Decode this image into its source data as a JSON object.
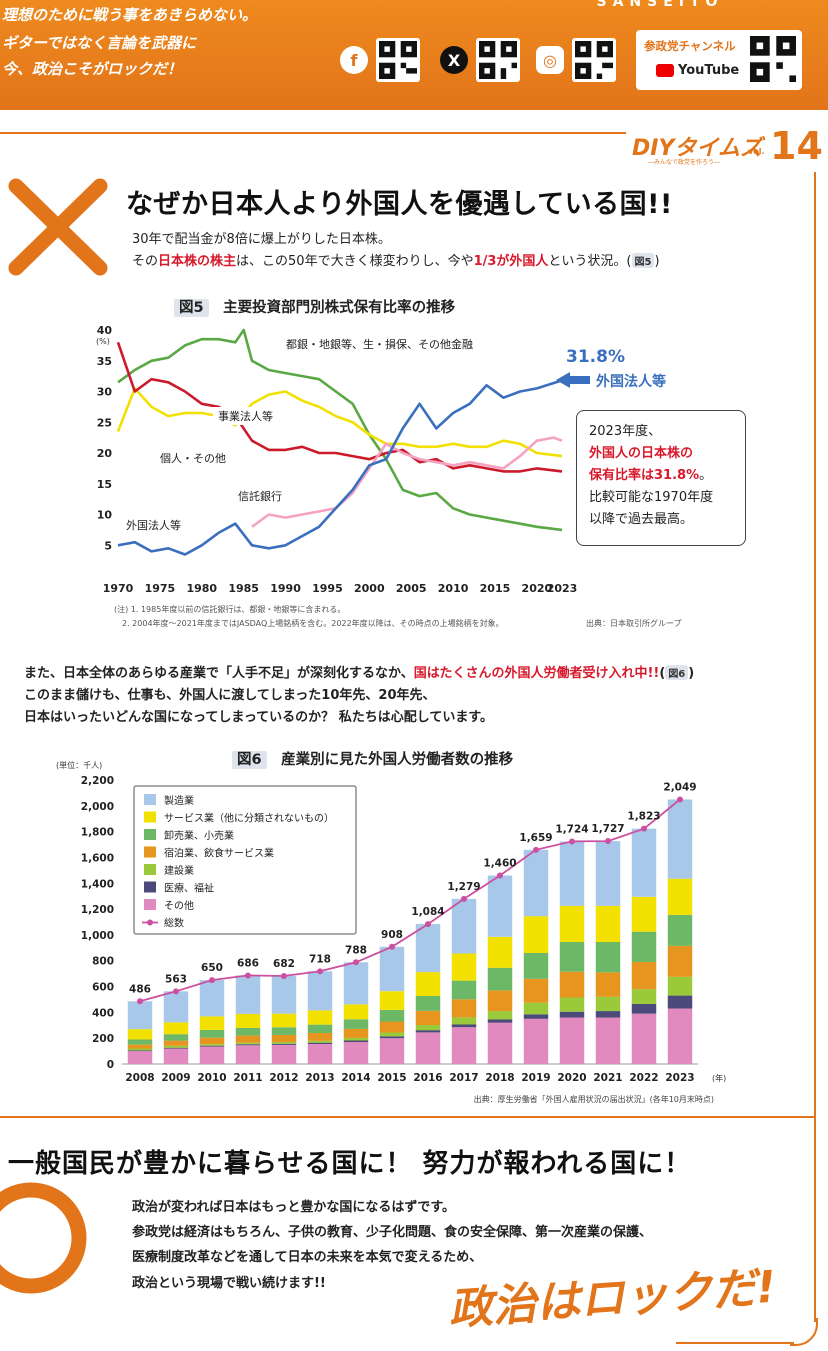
{
  "header": {
    "slogan_lines": [
      "理想のために戦う事をあきらめない。",
      "ギターではなく言論を武器に",
      "今、政治こそがロックだ！"
    ],
    "brand": "SANSEITO",
    "channel_label": "参政党チャンネル",
    "youtube_label": "YouTube",
    "social_icons": [
      "facebook-icon",
      "x-icon",
      "instagram-icon"
    ]
  },
  "masthead": {
    "title": "DIYタイムズ",
    "vol": "vol.",
    "number": "14",
    "tagline": "―みんなで政党を作ろう―"
  },
  "section1": {
    "headline": "なぜか日本人より外国人を優遇している国!!",
    "line1": "30年で配当金が8倍に爆上がりした日本株。",
    "line2_a": "その",
    "line2_red1": "日本株の株主",
    "line2_b": "は、この50年で大きく様変わりし、今や",
    "line2_red2": "1/3が外国人",
    "line2_c": "という状況。(",
    "line2_fig": "図5",
    "line2_d": ")"
  },
  "chart1_text": {
    "fig_label": "図5",
    "title": "主要投資部門別株式保有比率の推移",
    "unit": "(%)",
    "series_labels": {
      "fin": "都銀・地銀等、生・損保、その他金融",
      "corp": "事業法人等",
      "indiv": "個人・その他",
      "trust": "信託銀行",
      "foreign": "外国法人等"
    },
    "highlight_value": "31.8%",
    "highlight_label": "外国法人等",
    "notes": [
      "(注) 1. 1985年度以前の信託銀行は、都銀・地銀等に含まれる。",
      "2. 2004年度～2021年度まではJASDAQ上場銘柄を含む。2022年度以降は、その時点の上場銘柄を対象。"
    ],
    "source": "出典：日本取引所グループ"
  },
  "callout": {
    "l1": "2023年度、",
    "l2": "外国人の日本株の",
    "l3_red": "保有比率は31.8%",
    "l3_end": "。",
    "l4": "比較可能な1970年度",
    "l5": "以降で過去最高。"
  },
  "section2": {
    "l1_a": "また、日本全体のあらゆる産業で「人手不足」が深刻化するなか、",
    "l1_red": "国はたくさんの外国人労働者受け入れ中!!",
    "l1_b": "(",
    "l1_fig": "図6",
    "l1_c": ")",
    "l2": "このまま儲けも、仕事も、外国人に渡してしまった10年先、20年先、",
    "l3": "日本はいったいどんな国になってしまっているのか？ 私たちは心配しています。"
  },
  "chart2_text": {
    "fig_label": "図6",
    "title": "産業別に見た外国人労働者数の推移",
    "unit": "(単位：千人)",
    "year_unit": "(年)",
    "source": "出典：厚生労働省「外国人雇用状況の届出状況」(各年10月末時点)"
  },
  "chart_data": [
    {
      "type": "line",
      "title": "主要投資部門別株式保有比率の推移",
      "ylabel": "(%)",
      "ylim": [
        0,
        40
      ],
      "yticks": [
        5,
        10,
        15,
        20,
        25,
        30,
        35,
        40
      ],
      "xticks": [
        1970,
        1975,
        1980,
        1985,
        1990,
        1995,
        2000,
        2005,
        2010,
        2015,
        2020,
        2023
      ],
      "xlim": [
        1970,
        2023
      ],
      "series": [
        {
          "name": "都銀・地銀等、生・損保、その他金融",
          "color": "#5aa844",
          "x": [
            1970,
            1972,
            1974,
            1976,
            1978,
            1980,
            1982,
            1984,
            1985,
            1986,
            1988,
            1990,
            1992,
            1994,
            1996,
            1998,
            2000,
            2002,
            2004,
            2006,
            2008,
            2010,
            2012,
            2014,
            2016,
            2018,
            2020,
            2023
          ],
          "y": [
            31.5,
            33.5,
            35,
            35.5,
            37.5,
            38.5,
            38.5,
            38,
            40,
            35,
            33.5,
            33,
            32.5,
            32,
            30,
            28,
            23,
            19,
            14,
            13,
            13.5,
            11,
            10,
            9.5,
            9,
            8.5,
            8,
            7.5
          ]
        },
        {
          "name": "事業法人等",
          "color": "#f2e000",
          "x": [
            1970,
            1972,
            1974,
            1976,
            1978,
            1980,
            1982,
            1984,
            1986,
            1988,
            1990,
            1992,
            1994,
            1996,
            1998,
            2000,
            2002,
            2004,
            2006,
            2008,
            2010,
            2012,
            2014,
            2016,
            2018,
            2020,
            2023
          ],
          "y": [
            23.5,
            30.5,
            27.5,
            26,
            26.5,
            26.5,
            26,
            24.5,
            28,
            29.5,
            30,
            28.5,
            27.5,
            26,
            25,
            23,
            21.5,
            21.5,
            21,
            21,
            21.5,
            21,
            21,
            22,
            21.5,
            20,
            19.5
          ]
        },
        {
          "name": "個人・その他",
          "color": "#cc1a2a",
          "x": [
            1970,
            1972,
            1974,
            1976,
            1978,
            1980,
            1982,
            1984,
            1986,
            1988,
            1990,
            1992,
            1994,
            1996,
            1998,
            2000,
            2002,
            2004,
            2006,
            2008,
            2010,
            2012,
            2014,
            2016,
            2018,
            2020,
            2023
          ],
          "y": [
            38,
            30,
            32,
            31.5,
            30,
            28,
            27.5,
            26,
            22,
            20.5,
            20.5,
            21,
            20,
            20,
            19.5,
            19,
            20,
            20.5,
            18.5,
            19,
            17.5,
            18,
            17.5,
            17,
            17,
            17.5,
            17
          ]
        },
        {
          "name": "信託銀行",
          "color": "#f5a3c0",
          "x": [
            1986,
            1988,
            1990,
            1992,
            1994,
            1996,
            1998,
            2000,
            2002,
            2004,
            2006,
            2008,
            2010,
            2012,
            2014,
            2016,
            2018,
            2020,
            2022,
            2023
          ],
          "y": [
            8,
            10,
            9.5,
            10,
            10.5,
            11,
            13.5,
            17.5,
            21.5,
            20,
            19,
            18.5,
            18,
            18.5,
            18,
            17.5,
            19.5,
            22,
            22.5,
            22
          ]
        },
        {
          "name": "外国法人等",
          "color": "#3a6fbf",
          "x": [
            1970,
            1972,
            1974,
            1976,
            1978,
            1980,
            1982,
            1984,
            1986,
            1988,
            1990,
            1992,
            1994,
            1996,
            1998,
            2000,
            2002,
            2004,
            2006,
            2008,
            2010,
            2012,
            2014,
            2016,
            2018,
            2020,
            2023
          ],
          "y": [
            5,
            5.5,
            4,
            4.5,
            3.5,
            5,
            7,
            8.5,
            5,
            4.5,
            5,
            6.5,
            8,
            11,
            14,
            18,
            19,
            24,
            28,
            24,
            26.5,
            28,
            31,
            29,
            30,
            30.5,
            31.8
          ]
        }
      ]
    },
    {
      "type": "bar",
      "stacked": true,
      "title": "産業別に見た外国人労働者数の推移",
      "ylabel": "(単位：千人)",
      "ylim": [
        0,
        2200
      ],
      "yticks": [
        0,
        200,
        400,
        600,
        800,
        1000,
        1200,
        1400,
        1600,
        1800,
        2000,
        2200
      ],
      "categories": [
        "2008",
        "2009",
        "2010",
        "2011",
        "2012",
        "2013",
        "2014",
        "2015",
        "2016",
        "2017",
        "2018",
        "2019",
        "2020",
        "2021",
        "2022",
        "2023"
      ],
      "totals": [
        486,
        563,
        650,
        686,
        682,
        718,
        788,
        908,
        1084,
        1279,
        1460,
        1659,
        1724,
        1727,
        1823,
        2049
      ],
      "series": [
        {
          "name": "その他",
          "color": "#e08ac0",
          "values": [
            100,
            120,
            135,
            145,
            148,
            155,
            170,
            200,
            245,
            285,
            320,
            350,
            360,
            360,
            390,
            430
          ]
        },
        {
          "name": "医療、福祉",
          "color": "#4b4a7a",
          "values": [
            5,
            6,
            7,
            8,
            9,
            10,
            12,
            14,
            17,
            21,
            25,
            35,
            45,
            50,
            75,
            100
          ]
        },
        {
          "name": "建設業",
          "color": "#9ac93a",
          "values": [
            15,
            15,
            12,
            12,
            13,
            15,
            20,
            30,
            40,
            55,
            65,
            90,
            110,
            110,
            115,
            145
          ]
        },
        {
          "name": "宿泊業、飲食サービス業",
          "color": "#e6961e",
          "values": [
            30,
            40,
            50,
            55,
            55,
            60,
            70,
            85,
            110,
            140,
            160,
            185,
            200,
            190,
            210,
            240
          ]
        },
        {
          "name": "卸売業、小売業",
          "color": "#6db867",
          "values": [
            40,
            50,
            60,
            60,
            60,
            65,
            75,
            90,
            115,
            145,
            175,
            200,
            230,
            235,
            235,
            240
          ]
        },
        {
          "name": "サービス業（他に分類されないもの）",
          "color": "#f2e000",
          "values": [
            80,
            92,
            105,
            108,
            105,
            110,
            115,
            145,
            185,
            210,
            240,
            285,
            280,
            280,
            270,
            280
          ]
        },
        {
          "name": "製造業",
          "color": "#a7c8e8",
          "values": [
            216,
            240,
            281,
            298,
            292,
            303,
            326,
            344,
            372,
            423,
            475,
            514,
            499,
            502,
            528,
            614
          ]
        }
      ],
      "total_series_name": "総数",
      "total_color": "#cc4fa0"
    }
  ],
  "section3": {
    "headline": "一般国民が豊かに暮らせる国に！ 努力が報われる国に！",
    "lines": [
      "政治が変われば日本はもっと豊かな国になるはずです。",
      "参政党は経済はもちろん、子供の教育、少子化問題、食の安全保障、第一次産業の保護、",
      "医療制度改革などを通して日本の未来を本気で変えるため、",
      "政治という現場で戦い続けます!!"
    ],
    "rock": "政治はロックだ!"
  },
  "colors": {
    "accent": "#e2741a",
    "red": "#d8192b",
    "blue": "#3a6fbf"
  }
}
